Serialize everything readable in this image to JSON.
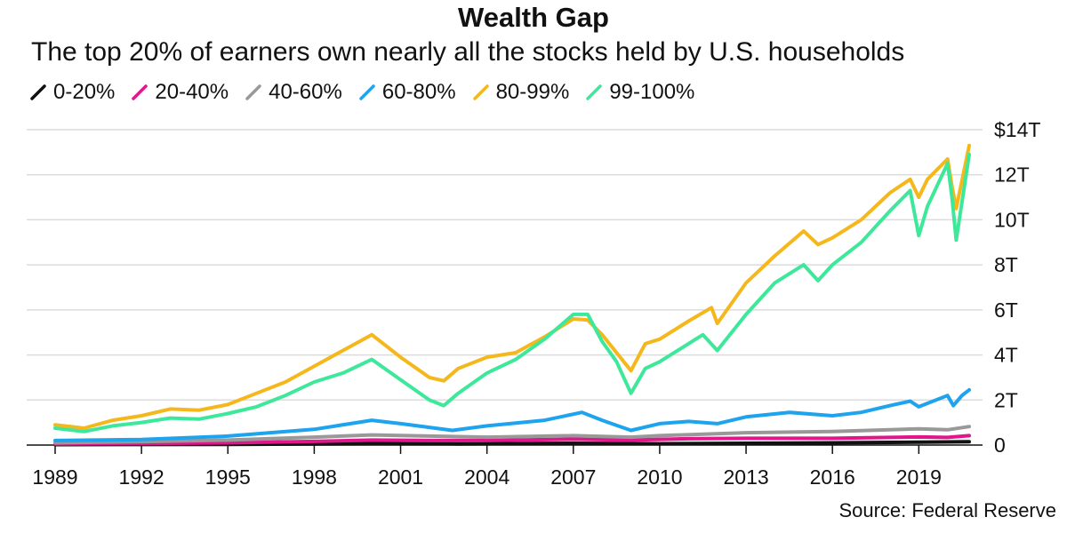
{
  "title": "Wealth Gap",
  "subtitle": "The top 20% of earners own nearly all the stocks held by U.S. households",
  "source": "Source: Federal Reserve",
  "chart_data": {
    "type": "line",
    "title": "Wealth Gap",
    "subtitle": "The top 20% of earners own nearly all the stocks held by U.S. households",
    "xlabel": "",
    "ylabel": "",
    "xlim": [
      1989,
      2020.75
    ],
    "ylim": [
      0,
      14
    ],
    "x_ticks": [
      1989,
      1992,
      1995,
      1998,
      2001,
      2004,
      2007,
      2010,
      2013,
      2016,
      2019
    ],
    "y_ticks": [
      {
        "value": 0,
        "label": "0"
      },
      {
        "value": 2,
        "label": "2T"
      },
      {
        "value": 4,
        "label": "4T"
      },
      {
        "value": 6,
        "label": "6T"
      },
      {
        "value": 8,
        "label": "8T"
      },
      {
        "value": 10,
        "label": "10T"
      },
      {
        "value": 12,
        "label": "12T"
      },
      {
        "value": 14,
        "label": "$14T"
      }
    ],
    "y_axis_side": "right",
    "grid": "horizontal",
    "legend_position": "top-left",
    "series": [
      {
        "name": "0-20%",
        "color": "#111111",
        "x": [
          1989,
          1995,
          2000,
          2003,
          2007,
          2010,
          2013,
          2016,
          2019,
          2020.75
        ],
        "values": [
          0.02,
          0.03,
          0.06,
          0.05,
          0.08,
          0.06,
          0.08,
          0.1,
          0.13,
          0.15
        ]
      },
      {
        "name": "20-40%",
        "color": "#e0168a",
        "x": [
          1989,
          1992,
          1995,
          1998,
          2000,
          2002,
          2004,
          2007,
          2009,
          2011,
          2013,
          2016,
          2019,
          2020,
          2020.75
        ],
        "values": [
          0.05,
          0.07,
          0.1,
          0.16,
          0.22,
          0.2,
          0.2,
          0.26,
          0.22,
          0.28,
          0.3,
          0.3,
          0.36,
          0.34,
          0.42
        ]
      },
      {
        "name": "40-60%",
        "color": "#999999",
        "x": [
          1989,
          1992,
          1995,
          1998,
          2000,
          2002,
          2004,
          2007,
          2009,
          2010,
          2013,
          2016,
          2019,
          2020,
          2020.75
        ],
        "values": [
          0.1,
          0.15,
          0.22,
          0.35,
          0.45,
          0.4,
          0.35,
          0.42,
          0.35,
          0.42,
          0.55,
          0.6,
          0.72,
          0.68,
          0.82
        ]
      },
      {
        "name": "60-80%",
        "color": "#1ea3ee",
        "x": [
          1989,
          1992,
          1995,
          1998,
          2000,
          2001,
          2002.8,
          2004,
          2006,
          2007.3,
          2008,
          2009,
          2010,
          2011,
          2012,
          2013,
          2014.5,
          2015.5,
          2016,
          2017,
          2018,
          2018.7,
          2019,
          2020,
          2020.2,
          2020.5,
          2020.75
        ],
        "values": [
          0.2,
          0.25,
          0.4,
          0.7,
          1.1,
          0.95,
          0.65,
          0.85,
          1.1,
          1.45,
          1.1,
          0.65,
          0.95,
          1.05,
          0.95,
          1.25,
          1.45,
          1.35,
          1.3,
          1.45,
          1.75,
          1.95,
          1.7,
          2.2,
          1.75,
          2.2,
          2.45
        ]
      },
      {
        "name": "80-99%",
        "color": "#f4b81c",
        "x": [
          1989,
          1990,
          1991,
          1992,
          1993,
          1994,
          1995,
          1996,
          1997,
          1998,
          1999,
          2000,
          2001,
          2002,
          2002.5,
          2003,
          2004,
          2005,
          2006,
          2007,
          2007.5,
          2008,
          2008.5,
          2009,
          2009.5,
          2010,
          2011,
          2011.8,
          2012,
          2013,
          2014,
          2015,
          2015.5,
          2016,
          2017,
          2018,
          2018.7,
          2019,
          2019.3,
          2020,
          2020.15,
          2020.3,
          2020.75
        ],
        "values": [
          0.9,
          0.75,
          1.1,
          1.3,
          1.6,
          1.55,
          1.8,
          2.3,
          2.8,
          3.5,
          4.2,
          4.9,
          3.9,
          3.0,
          2.85,
          3.4,
          3.9,
          4.1,
          4.8,
          5.6,
          5.55,
          4.9,
          4.1,
          3.3,
          4.5,
          4.7,
          5.5,
          6.1,
          5.4,
          7.2,
          8.4,
          9.5,
          8.9,
          9.2,
          10.0,
          11.2,
          11.8,
          11.0,
          11.8,
          12.7,
          11.5,
          10.5,
          13.3
        ]
      },
      {
        "name": "99-100%",
        "color": "#3ee89a",
        "x": [
          1989,
          1990,
          1991,
          1992,
          1993,
          1994,
          1995,
          1996,
          1997,
          1998,
          1999,
          2000,
          2001,
          2002,
          2002.5,
          2003,
          2004,
          2005,
          2006,
          2007,
          2007.5,
          2008,
          2008.5,
          2009,
          2009.5,
          2010,
          2011,
          2011.5,
          2012,
          2013,
          2014,
          2015,
          2015.5,
          2016,
          2017,
          2018,
          2018.7,
          2019,
          2019.3,
          2020,
          2020.15,
          2020.3,
          2020.75
        ],
        "values": [
          0.75,
          0.6,
          0.85,
          1.0,
          1.2,
          1.15,
          1.4,
          1.7,
          2.2,
          2.8,
          3.2,
          3.8,
          2.9,
          2.0,
          1.75,
          2.3,
          3.2,
          3.8,
          4.7,
          5.8,
          5.8,
          4.6,
          3.7,
          2.3,
          3.4,
          3.7,
          4.5,
          4.9,
          4.2,
          5.8,
          7.2,
          8.0,
          7.3,
          8.0,
          9.0,
          10.4,
          11.3,
          9.3,
          10.6,
          12.5,
          11.0,
          9.1,
          12.9
        ]
      }
    ]
  }
}
